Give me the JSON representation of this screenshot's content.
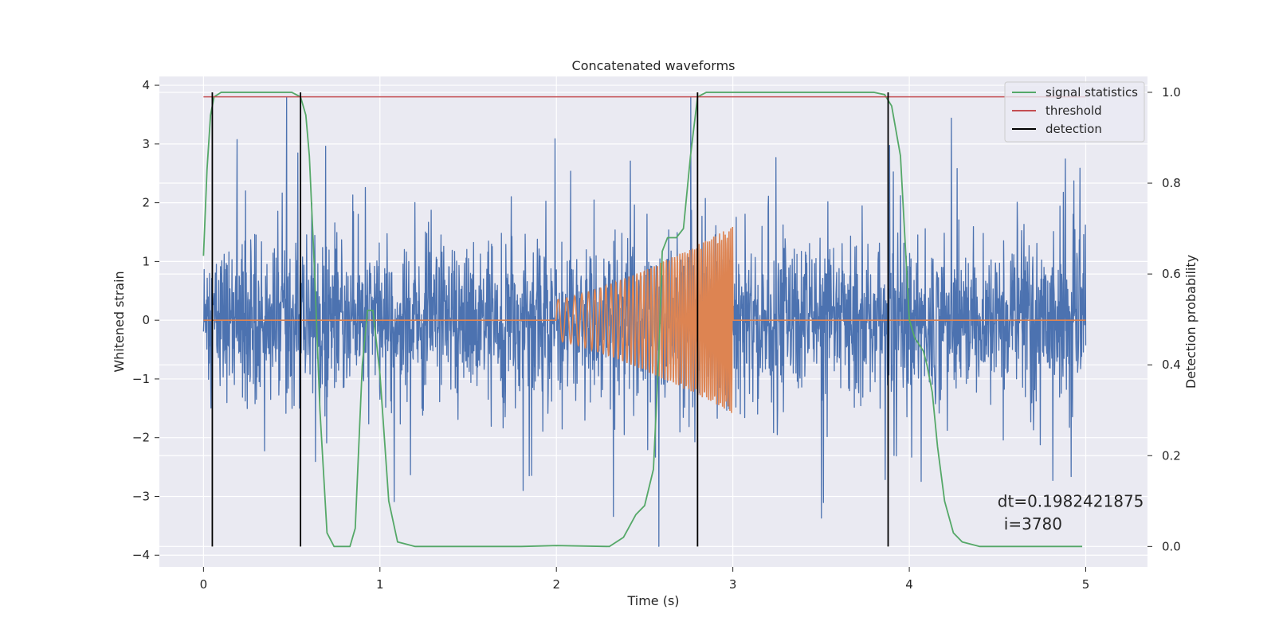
{
  "chart_data": {
    "type": "line",
    "title": "Concatenated waveforms",
    "xlabel": "Time (s)",
    "ylabel_left": "Whitened strain",
    "ylabel_right": "Detection probability",
    "xlim": [
      -0.25,
      5.35
    ],
    "ylim_left": [
      -4.2,
      4.15
    ],
    "ylim_right": [
      -0.045,
      1.035
    ],
    "x_ticks": [
      0,
      1,
      2,
      3,
      4,
      5
    ],
    "y_ticks_left": [
      -4,
      -3,
      -2,
      -1,
      0,
      1,
      2,
      3,
      4
    ],
    "y_ticks_right": [
      0.0,
      0.2,
      0.4,
      0.6,
      0.8,
      1.0
    ],
    "grid": true,
    "legend_position": "top-right",
    "legend": [
      "signal statistics",
      "threshold",
      "detection"
    ],
    "series": [
      {
        "name": "whitened strain",
        "axis": "left",
        "color": "#4c72b0",
        "kind": "noise",
        "x_range": [
          0,
          5
        ],
        "core_amplitude": 0.8,
        "spike_max": 3.8,
        "spike_min": -3.85
      },
      {
        "name": "injected waveform",
        "axis": "left",
        "color": "#dd8452",
        "kind": "chirp",
        "x_range": [
          0,
          5
        ],
        "chirp_start": 2.0,
        "chirp_end": 3.0,
        "amplitude_start": 0.35,
        "amplitude_end": 1.6,
        "frequency_start": 20,
        "frequency_end": 100
      },
      {
        "name": "signal statistics",
        "axis": "right",
        "color": "#55a868",
        "points": [
          [
            0.0,
            0.64
          ],
          [
            0.02,
            0.83
          ],
          [
            0.04,
            0.95
          ],
          [
            0.06,
            0.99
          ],
          [
            0.1,
            1.0
          ],
          [
            0.5,
            1.0
          ],
          [
            0.55,
            0.99
          ],
          [
            0.58,
            0.95
          ],
          [
            0.6,
            0.86
          ],
          [
            0.63,
            0.6
          ],
          [
            0.66,
            0.3
          ],
          [
            0.7,
            0.03
          ],
          [
            0.74,
            0.0
          ],
          [
            0.83,
            0.0
          ],
          [
            0.86,
            0.04
          ],
          [
            0.9,
            0.4
          ],
          [
            0.93,
            0.52
          ],
          [
            0.96,
            0.52
          ],
          [
            1.0,
            0.38
          ],
          [
            1.05,
            0.1
          ],
          [
            1.1,
            0.01
          ],
          [
            1.2,
            0.0
          ],
          [
            1.8,
            0.0
          ],
          [
            2.0,
            0.002
          ],
          [
            2.3,
            0.0
          ],
          [
            2.38,
            0.02
          ],
          [
            2.45,
            0.07
          ],
          [
            2.5,
            0.09
          ],
          [
            2.55,
            0.17
          ],
          [
            2.58,
            0.42
          ],
          [
            2.6,
            0.65
          ],
          [
            2.63,
            0.68
          ],
          [
            2.68,
            0.68
          ],
          [
            2.72,
            0.7
          ],
          [
            2.76,
            0.86
          ],
          [
            2.8,
            0.99
          ],
          [
            2.85,
            1.0
          ],
          [
            3.8,
            1.0
          ],
          [
            3.86,
            0.995
          ],
          [
            3.9,
            0.97
          ],
          [
            3.95,
            0.86
          ],
          [
            4.0,
            0.5
          ],
          [
            4.03,
            0.46
          ],
          [
            4.08,
            0.43
          ],
          [
            4.1,
            0.4
          ],
          [
            4.13,
            0.34
          ],
          [
            4.16,
            0.22
          ],
          [
            4.2,
            0.1
          ],
          [
            4.25,
            0.03
          ],
          [
            4.3,
            0.01
          ],
          [
            4.4,
            0.0
          ],
          [
            4.98,
            0.0
          ]
        ]
      },
      {
        "name": "threshold",
        "axis": "right",
        "color": "#c44e52",
        "points": [
          [
            0.0,
            0.99
          ],
          [
            5.0,
            0.99
          ]
        ]
      }
    ],
    "detections": {
      "name": "detection",
      "color": "#000000",
      "x": [
        0.05,
        0.55,
        2.8,
        3.88
      ],
      "y_range": [
        0.0,
        1.0
      ]
    },
    "annotations": [
      {
        "text": "dt=0.1982421875",
        "x": 4.5,
        "y_right": 0.1
      },
      {
        "text": "i=3780",
        "x": 4.5,
        "y_right": 0.05
      }
    ]
  }
}
